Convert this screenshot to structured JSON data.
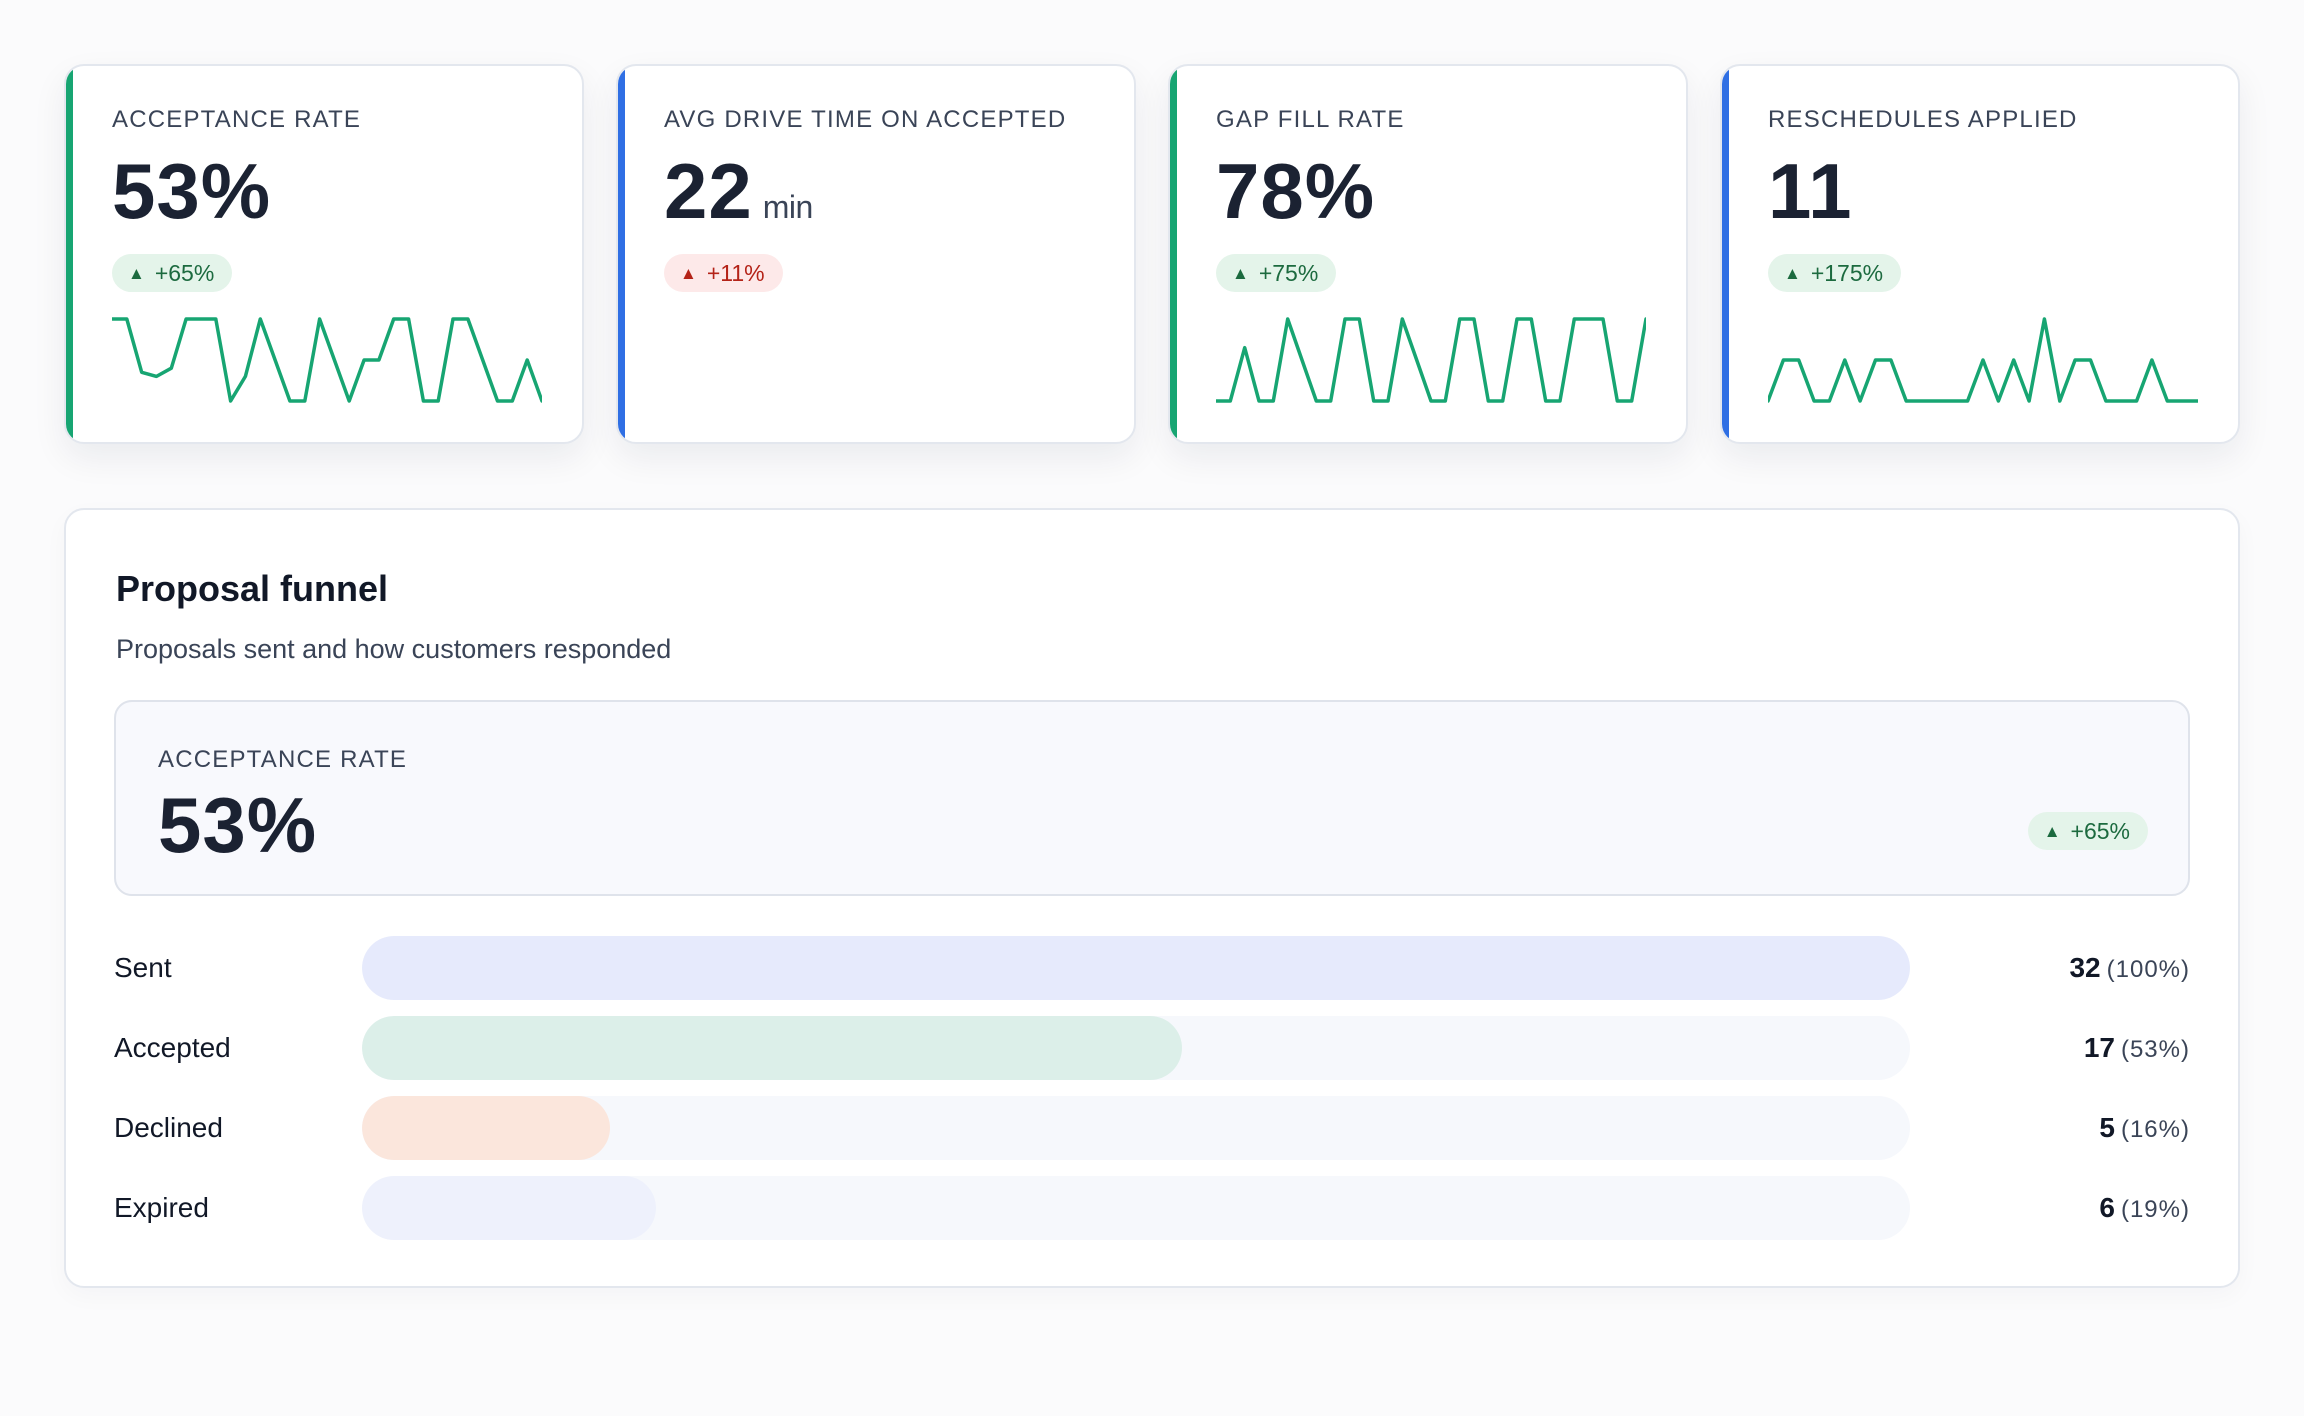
{
  "kpis": [
    {
      "label": "ACCEPTANCE RATE",
      "value": "53%",
      "unit": "",
      "delta": "+65%",
      "trend": "good",
      "accent": "#17a572",
      "sparkline": [
        1,
        1,
        0.35,
        0.3,
        0.4,
        1,
        1,
        1,
        0,
        0.3,
        1,
        0.5,
        0,
        0,
        1,
        0.5,
        0,
        0.5,
        0.5,
        1,
        1,
        0,
        0,
        1,
        1,
        0.5,
        0,
        0,
        0.5,
        0
      ]
    },
    {
      "label": "AVG DRIVE TIME ON ACCEPTED",
      "value": "22",
      "unit": "min",
      "delta": "+11%",
      "trend": "bad",
      "accent": "#2f6fe4",
      "sparkline": []
    },
    {
      "label": "GAP FILL RATE",
      "value": "78%",
      "unit": "",
      "delta": "+75%",
      "trend": "good",
      "accent": "#17a572",
      "sparkline": [
        0,
        0,
        0.65,
        0,
        0,
        1,
        0.5,
        0,
        0,
        1,
        1,
        0,
        0,
        1,
        0.5,
        0,
        0,
        1,
        1,
        0,
        0,
        1,
        1,
        0,
        0,
        1,
        1,
        1,
        0,
        0,
        1
      ]
    },
    {
      "label": "RESCHEDULES APPLIED",
      "value": "11",
      "unit": "",
      "delta": "+175%",
      "trend": "good",
      "accent": "#2f6fe4",
      "sparkline": [
        0,
        0.5,
        0.5,
        0,
        0,
        0.5,
        0,
        0.5,
        0.5,
        0,
        0,
        0,
        0,
        0,
        0.5,
        0,
        0.5,
        0,
        1,
        0,
        0.5,
        0.5,
        0,
        0,
        0,
        0.5,
        0,
        0,
        0
      ]
    }
  ],
  "funnel": {
    "title": "Proposal funnel",
    "subtitle": "Proposals sent and how customers responded",
    "summary": {
      "label": "ACCEPTANCE RATE",
      "value": "53%",
      "delta": "+65%"
    },
    "rows": [
      {
        "label": "Sent",
        "count": "32",
        "pct": "(100%)",
        "fraction": 1.0,
        "color": "#e6eafc"
      },
      {
        "label": "Accepted",
        "count": "17",
        "pct": "(53%)",
        "fraction": 0.53,
        "color": "#dcefe9"
      },
      {
        "label": "Declined",
        "count": "5",
        "pct": "(16%)",
        "fraction": 0.16,
        "color": "#fbe6dc"
      },
      {
        "label": "Expired",
        "count": "6",
        "pct": "(19%)",
        "fraction": 0.19,
        "color": "#eef1fc"
      }
    ]
  },
  "icons": {
    "trend": "triangle-up-icon"
  },
  "badge_glyph": "▲"
}
